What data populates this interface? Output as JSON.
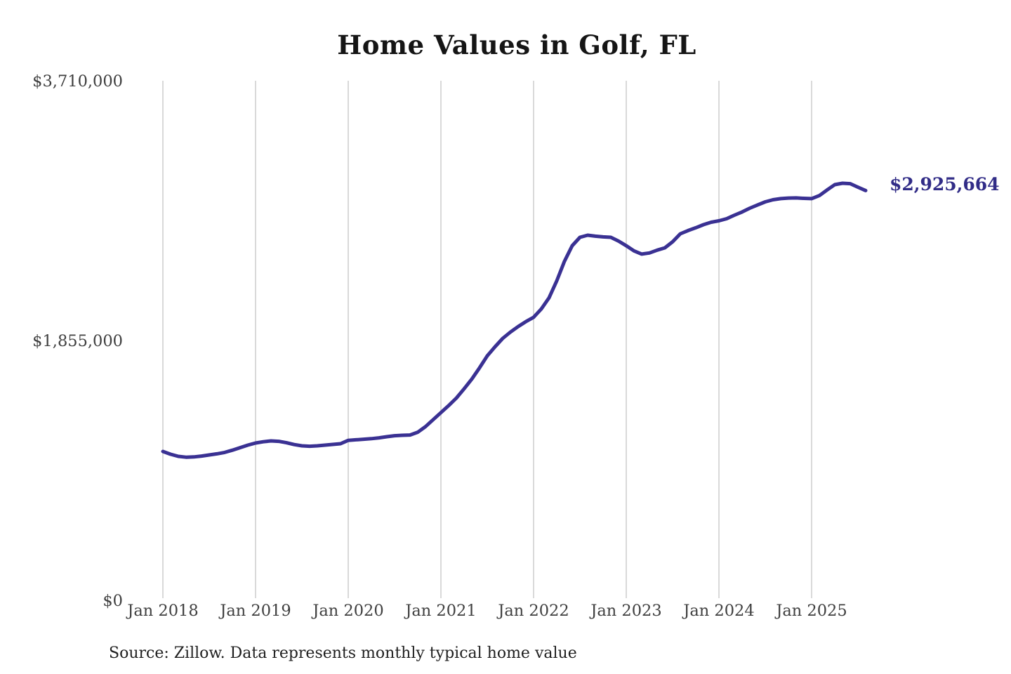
{
  "chart": {
    "title": "Home Values in Golf, FL",
    "source_note": "Source: Zillow. Data represents monthly typical home value",
    "end_label": "$2,925,664",
    "colors": {
      "line": "#3a3193",
      "end_label": "#312c87",
      "gridline": "#c9c9c9",
      "tick_text": "#3f3f3f",
      "title_text": "#151515",
      "source_text": "#1f1f1f",
      "background": "#ffffff"
    }
  },
  "chart_data": {
    "type": "line",
    "title": "Home Values in Golf, FL",
    "xlabel": "",
    "ylabel": "",
    "ylim": [
      0,
      3710000
    ],
    "grid": "vertical-only",
    "legend": "none",
    "y_ticks": [
      {
        "label": "$0",
        "value": 0
      },
      {
        "label": "$1,855,000",
        "value": 1855000
      },
      {
        "label": "$3,710,000",
        "value": 3710000
      }
    ],
    "x_tick_labels": [
      "Jan 2018",
      "Jan 2019",
      "Jan 2020",
      "Jan 2021",
      "Jan 2022",
      "Jan 2023",
      "Jan 2024",
      "Jan 2025"
    ],
    "last_value": 2925664,
    "last_value_label": "$2,925,664",
    "x": [
      "2018-01",
      "2018-02",
      "2018-03",
      "2018-04",
      "2018-05",
      "2018-06",
      "2018-07",
      "2018-08",
      "2018-09",
      "2018-10",
      "2018-11",
      "2018-12",
      "2019-01",
      "2019-02",
      "2019-03",
      "2019-04",
      "2019-05",
      "2019-06",
      "2019-07",
      "2019-08",
      "2019-09",
      "2019-10",
      "2019-11",
      "2019-12",
      "2020-01",
      "2020-02",
      "2020-03",
      "2020-04",
      "2020-05",
      "2020-06",
      "2020-07",
      "2020-08",
      "2020-09",
      "2020-10",
      "2020-11",
      "2020-12",
      "2021-01",
      "2021-02",
      "2021-03",
      "2021-04",
      "2021-05",
      "2021-06",
      "2021-07",
      "2021-08",
      "2021-09",
      "2021-10",
      "2021-11",
      "2021-12",
      "2022-01",
      "2022-02",
      "2022-03",
      "2022-04",
      "2022-05",
      "2022-06",
      "2022-07",
      "2022-08",
      "2022-09",
      "2022-10",
      "2022-11",
      "2022-12",
      "2023-01",
      "2023-02",
      "2023-03",
      "2023-04",
      "2023-05",
      "2023-06",
      "2023-07",
      "2023-08",
      "2023-09",
      "2023-10",
      "2023-11",
      "2023-12",
      "2024-01",
      "2024-02",
      "2024-03",
      "2024-04",
      "2024-05",
      "2024-06",
      "2024-07",
      "2024-08",
      "2024-09",
      "2024-10",
      "2024-11",
      "2024-12",
      "2025-01",
      "2025-02",
      "2025-03",
      "2025-04",
      "2025-05",
      "2025-06",
      "2025-07",
      "2025-08"
    ],
    "series": [
      {
        "name": "Monthly typical home value",
        "values": [
          1063000,
          1043000,
          1028000,
          1022000,
          1024000,
          1030000,
          1038000,
          1046000,
          1056000,
          1072000,
          1090000,
          1108000,
          1123000,
          1132000,
          1138000,
          1135000,
          1125000,
          1112000,
          1103000,
          1100000,
          1103000,
          1108000,
          1113000,
          1118000,
          1142000,
          1146000,
          1150000,
          1154000,
          1160000,
          1168000,
          1175000,
          1178000,
          1180000,
          1200000,
          1240000,
          1290000,
          1340000,
          1390000,
          1444000,
          1510000,
          1580000,
          1660000,
          1745000,
          1810000,
          1870000,
          1915000,
          1955000,
          1990000,
          2021000,
          2080000,
          2160000,
          2281000,
          2421000,
          2532000,
          2592000,
          2607000,
          2600000,
          2595000,
          2592000,
          2565000,
          2532000,
          2495000,
          2472000,
          2480000,
          2500000,
          2517000,
          2560000,
          2617000,
          2640000,
          2660000,
          2682000,
          2700000,
          2710000,
          2725000,
          2750000,
          2773000,
          2800000,
          2823000,
          2845000,
          2860000,
          2868000,
          2872000,
          2873000,
          2870000,
          2868000,
          2890000,
          2930000,
          2968000,
          2978000,
          2975000,
          2950000,
          2925664
        ]
      }
    ]
  }
}
